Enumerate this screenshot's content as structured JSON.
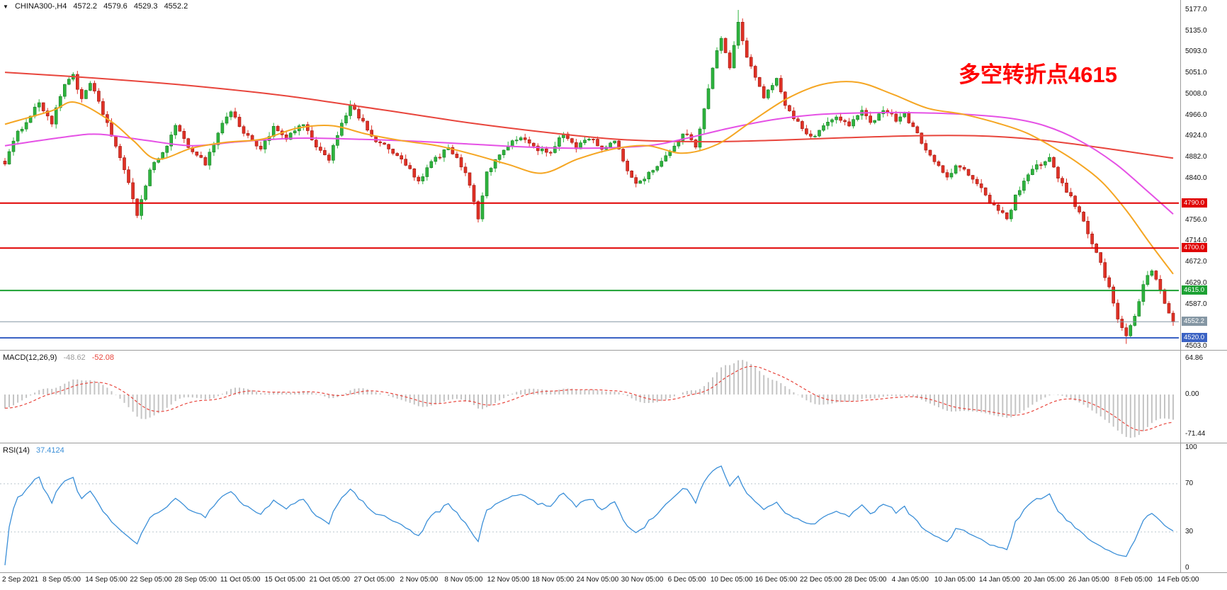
{
  "chart_data": {
    "type": "candlestick",
    "title": "CHINA300-,H4",
    "symbol": "CHINA300-",
    "timeframe": "H4",
    "legend_ohlc": {
      "open": "4572.2",
      "high": "4579.6",
      "low": "4529.3",
      "close": "4552.2"
    },
    "annotation": {
      "text": "多空转折点4615",
      "color": "#ff0000"
    },
    "icons": {
      "symbol_dropdown": "▼"
    },
    "y_axis": {
      "top_price": 5196.9,
      "bottom_price": 4495.9,
      "ticks": [
        "5177.0",
        "5135.0",
        "5093.0",
        "5051.0",
        "5008.0",
        "4966.0",
        "4924.0",
        "4882.0",
        "4840.0",
        "4756.0",
        "4714.0",
        "4672.0",
        "4629.0",
        "4587.0",
        "4503.0"
      ]
    },
    "x_labels": [
      "2 Sep 2021",
      "8 Sep 05:00",
      "14 Sep 05:00",
      "22 Sep 05:00",
      "28 Sep 05:00",
      "11 Oct 05:00",
      "15 Oct 05:00",
      "21 Oct 05:00",
      "27 Oct 05:00",
      "2 Nov 05:00",
      "8 Nov 05:00",
      "12 Nov 05:00",
      "18 Nov 05:00",
      "24 Nov 05:00",
      "30 Nov 05:00",
      "6 Dec 05:00",
      "10 Dec 05:00",
      "16 Dec 05:00",
      "22 Dec 05:00",
      "28 Dec 05:00",
      "4 Jan 05:00",
      "10 Jan 05:00",
      "14 Jan 05:00",
      "20 Jan 05:00",
      "26 Jan 05:00",
      "8 Feb 05:00",
      "14 Feb 05:00"
    ],
    "price_levels": [
      {
        "price": 4790.0,
        "label": "4790.0",
        "color": "#e00000",
        "kind": "resistance"
      },
      {
        "price": 4700.0,
        "label": "4700.0",
        "color": "#e00000",
        "kind": "resistance"
      },
      {
        "price": 4615.0,
        "label": "4615.0",
        "color": "#1ca133",
        "kind": "pivot"
      },
      {
        "price": 4552.2,
        "label": "4552.2",
        "color": "#8496a3",
        "kind": "current-price"
      },
      {
        "price": 4520.0,
        "label": "4520.0",
        "color": "#3a62c4",
        "kind": "support"
      }
    ],
    "candles": {
      "count": 275,
      "up_color": "#2eb43e",
      "down_color": "#e03126",
      "high_extreme": 5177.0,
      "low_extreme": 4508.0,
      "last_close": 4552.2,
      "close_anchors": [
        [
          0,
          4872
        ],
        [
          3,
          4930
        ],
        [
          8,
          4992
        ],
        [
          11,
          4950
        ],
        [
          14,
          5030
        ],
        [
          16,
          5048
        ],
        [
          18,
          4995
        ],
        [
          20,
          5030
        ],
        [
          24,
          4950
        ],
        [
          27,
          4880
        ],
        [
          30,
          4800
        ],
        [
          31,
          4768
        ],
        [
          34,
          4855
        ],
        [
          37,
          4892
        ],
        [
          40,
          4942
        ],
        [
          43,
          4905
        ],
        [
          47,
          4870
        ],
        [
          51,
          4950
        ],
        [
          53,
          4975
        ],
        [
          56,
          4930
        ],
        [
          60,
          4900
        ],
        [
          63,
          4940
        ],
        [
          66,
          4918
        ],
        [
          70,
          4950
        ],
        [
          73,
          4898
        ],
        [
          76,
          4880
        ],
        [
          79,
          4952
        ],
        [
          81,
          4985
        ],
        [
          84,
          4950
        ],
        [
          87,
          4915
        ],
        [
          90,
          4898
        ],
        [
          94,
          4868
        ],
        [
          97,
          4830
        ],
        [
          100,
          4872
        ],
        [
          104,
          4900
        ],
        [
          107,
          4866
        ],
        [
          109,
          4828
        ],
        [
          111,
          4762
        ],
        [
          113,
          4850
        ],
        [
          117,
          4900
        ],
        [
          121,
          4922
        ],
        [
          125,
          4898
        ],
        [
          128,
          4890
        ],
        [
          131,
          4930
        ],
        [
          134,
          4902
        ],
        [
          137,
          4922
        ],
        [
          140,
          4900
        ],
        [
          143,
          4912
        ],
        [
          146,
          4858
        ],
        [
          148,
          4828
        ],
        [
          151,
          4850
        ],
        [
          154,
          4874
        ],
        [
          157,
          4902
        ],
        [
          159,
          4932
        ],
        [
          162,
          4905
        ],
        [
          164,
          4980
        ],
        [
          166,
          5065
        ],
        [
          168,
          5120
        ],
        [
          170,
          5060
        ],
        [
          172,
          5150
        ],
        [
          174,
          5085
        ],
        [
          176,
          5040
        ],
        [
          178,
          5000
        ],
        [
          181,
          5042
        ],
        [
          183,
          4988
        ],
        [
          186,
          4950
        ],
        [
          189,
          4920
        ],
        [
          192,
          4944
        ],
        [
          195,
          4962
        ],
        [
          198,
          4948
        ],
        [
          201,
          4972
        ],
        [
          203,
          4950
        ],
        [
          206,
          4980
        ],
        [
          209,
          4958
        ],
        [
          211,
          4970
        ],
        [
          213,
          4940
        ],
        [
          216,
          4900
        ],
        [
          219,
          4862
        ],
        [
          221,
          4840
        ],
        [
          223,
          4864
        ],
        [
          226,
          4848
        ],
        [
          229,
          4820
        ],
        [
          231,
          4792
        ],
        [
          235,
          4758
        ],
        [
          237,
          4802
        ],
        [
          239,
          4832
        ],
        [
          242,
          4864
        ],
        [
          245,
          4880
        ],
        [
          247,
          4840
        ],
        [
          250,
          4800
        ],
        [
          252,
          4772
        ],
        [
          254,
          4730
        ],
        [
          256,
          4694
        ],
        [
          258,
          4642
        ],
        [
          259,
          4620
        ],
        [
          261,
          4560
        ],
        [
          263,
          4524
        ],
        [
          265,
          4560
        ],
        [
          267,
          4630
        ],
        [
          269,
          4652
        ],
        [
          271,
          4618
        ],
        [
          272,
          4590
        ],
        [
          273,
          4568
        ],
        [
          274,
          4552.2
        ]
      ]
    },
    "moving_averages": [
      {
        "name": "ma-slow",
        "color": "#e8453c",
        "points": [
          [
            0,
            5052
          ],
          [
            0.08,
            5040
          ],
          [
            0.16,
            5025
          ],
          [
            0.24,
            5005
          ],
          [
            0.32,
            4978
          ],
          [
            0.4,
            4950
          ],
          [
            0.47,
            4930
          ],
          [
            0.53,
            4917
          ],
          [
            0.6,
            4913
          ],
          [
            0.66,
            4916
          ],
          [
            0.72,
            4921
          ],
          [
            0.78,
            4925
          ],
          [
            0.83,
            4925
          ],
          [
            0.87,
            4920
          ],
          [
            0.91,
            4910
          ],
          [
            0.95,
            4897
          ],
          [
            1,
            4880
          ]
        ]
      },
      {
        "name": "ma-medium",
        "color": "#e551e5",
        "points": [
          [
            0,
            4905
          ],
          [
            0.05,
            4922
          ],
          [
            0.08,
            4928
          ],
          [
            0.12,
            4916
          ],
          [
            0.16,
            4905
          ],
          [
            0.2,
            4913
          ],
          [
            0.25,
            4920
          ],
          [
            0.3,
            4918
          ],
          [
            0.35,
            4914
          ],
          [
            0.4,
            4908
          ],
          [
            0.45,
            4902
          ],
          [
            0.5,
            4900
          ],
          [
            0.55,
            4905
          ],
          [
            0.58,
            4918
          ],
          [
            0.62,
            4940
          ],
          [
            0.66,
            4958
          ],
          [
            0.7,
            4968
          ],
          [
            0.74,
            4971
          ],
          [
            0.78,
            4971
          ],
          [
            0.82,
            4968
          ],
          [
            0.86,
            4960
          ],
          [
            0.89,
            4945
          ],
          [
            0.92,
            4915
          ],
          [
            0.95,
            4870
          ],
          [
            0.975,
            4820
          ],
          [
            1,
            4768
          ]
        ]
      },
      {
        "name": "ma-fast",
        "color": "#f5a623",
        "points": [
          [
            0,
            4948
          ],
          [
            0.04,
            4975
          ],
          [
            0.06,
            4992
          ],
          [
            0.09,
            4955
          ],
          [
            0.11,
            4915
          ],
          [
            0.13,
            4878
          ],
          [
            0.16,
            4900
          ],
          [
            0.19,
            4912
          ],
          [
            0.22,
            4918
          ],
          [
            0.25,
            4940
          ],
          [
            0.28,
            4945
          ],
          [
            0.31,
            4928
          ],
          [
            0.34,
            4915
          ],
          [
            0.37,
            4905
          ],
          [
            0.4,
            4888
          ],
          [
            0.43,
            4868
          ],
          [
            0.46,
            4850
          ],
          [
            0.49,
            4878
          ],
          [
            0.52,
            4898
          ],
          [
            0.55,
            4905
          ],
          [
            0.58,
            4890
          ],
          [
            0.61,
            4908
          ],
          [
            0.64,
            4955
          ],
          [
            0.67,
            5000
          ],
          [
            0.7,
            5028
          ],
          [
            0.73,
            5032
          ],
          [
            0.76,
            5008
          ],
          [
            0.79,
            4980
          ],
          [
            0.82,
            4968
          ],
          [
            0.85,
            4950
          ],
          [
            0.875,
            4930
          ],
          [
            0.9,
            4898
          ],
          [
            0.92,
            4868
          ],
          [
            0.94,
            4830
          ],
          [
            0.96,
            4775
          ],
          [
            0.98,
            4710
          ],
          [
            1,
            4648
          ]
        ]
      }
    ],
    "macd": {
      "label": "MACD(12,26,9)",
      "main_value": "-48.62",
      "signal_value": "-52.08",
      "main_value_color": "#9c9c9c",
      "fast": 12,
      "slow": 26,
      "signal": 9,
      "hist_color": "#c4c4c4",
      "signal_color": "#e8453c",
      "axis_ticks": [
        {
          "v": 64.86,
          "label": "64.86"
        },
        {
          "v": 0,
          "label": "0.00"
        },
        {
          "v": -71.44,
          "label": "-71.44"
        }
      ]
    },
    "rsi": {
      "label": "RSI(14)",
      "value": "37.4124",
      "period": 14,
      "color": "#3b8fd8",
      "level_lines": [
        70,
        30
      ],
      "axis_ticks": [
        {
          "v": 100,
          "label": "100"
        },
        {
          "v": 70,
          "label": "70"
        },
        {
          "v": 30,
          "label": "30"
        },
        {
          "v": 0,
          "label": "0"
        }
      ]
    }
  }
}
